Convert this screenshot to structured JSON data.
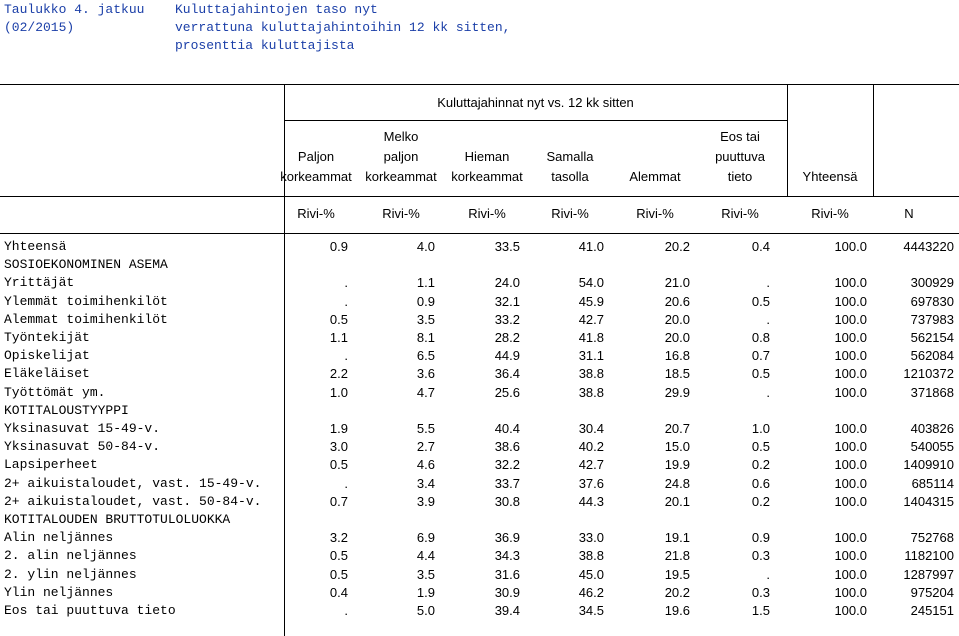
{
  "heading": {
    "table_no": "Taulukko 4. jatkuu",
    "period": "(02/2015)",
    "title_lines": [
      "Kuluttajahintojen taso nyt",
      "verrattuna kuluttajahintoihin 12 kk sitten,",
      "prosenttia kuluttajista"
    ]
  },
  "header": {
    "group": "Kuluttajahinnat nyt vs. 12 kk sitten",
    "columns": [
      [
        "",
        "Paljon",
        "korkeammat"
      ],
      [
        "Melko",
        "paljon",
        "korkeammat"
      ],
      [
        "",
        "Hieman",
        "korkeammat"
      ],
      [
        "",
        "Samalla",
        "tasolla"
      ],
      [
        "",
        "",
        "Alemmat"
      ],
      [
        "Eos tai",
        "puuttuva",
        "tieto"
      ],
      [
        "",
        "",
        "Yhteensä"
      ]
    ],
    "units": [
      "Rivi-%",
      "Rivi-%",
      "Rivi-%",
      "Rivi-%",
      "Rivi-%",
      "Rivi-%",
      "Rivi-%",
      "N"
    ]
  },
  "rows": [
    {
      "label": "Yhteensä",
      "v": [
        "0.9",
        "4.0",
        "33.5",
        "41.0",
        "20.2",
        "0.4",
        "100.0",
        "4443220"
      ]
    },
    {
      "label": "SOSIOEKONOMINEN ASEMA",
      "section": true
    },
    {
      "label": "Yrittäjät",
      "v": [
        ".",
        "1.1",
        "24.0",
        "54.0",
        "21.0",
        ".",
        "100.0",
        "300929"
      ]
    },
    {
      "label": "Ylemmät toimihenkilöt",
      "v": [
        ".",
        "0.9",
        "32.1",
        "45.9",
        "20.6",
        "0.5",
        "100.0",
        "697830"
      ]
    },
    {
      "label": "Alemmat toimihenkilöt",
      "v": [
        "0.5",
        "3.5",
        "33.2",
        "42.7",
        "20.0",
        ".",
        "100.0",
        "737983"
      ]
    },
    {
      "label": "Työntekijät",
      "v": [
        "1.1",
        "8.1",
        "28.2",
        "41.8",
        "20.0",
        "0.8",
        "100.0",
        "562154"
      ]
    },
    {
      "label": "Opiskelijat",
      "v": [
        ".",
        "6.5",
        "44.9",
        "31.1",
        "16.8",
        "0.7",
        "100.0",
        "562084"
      ]
    },
    {
      "label": "Eläkeläiset",
      "v": [
        "2.2",
        "3.6",
        "36.4",
        "38.8",
        "18.5",
        "0.5",
        "100.0",
        "1210372"
      ]
    },
    {
      "label": "Työttömät ym.",
      "v": [
        "1.0",
        "4.7",
        "25.6",
        "38.8",
        "29.9",
        ".",
        "100.0",
        "371868"
      ]
    },
    {
      "label": "KOTITALOUSTYYPPI",
      "section": true
    },
    {
      "label": "Yksinasuvat 15-49-v.",
      "v": [
        "1.9",
        "5.5",
        "40.4",
        "30.4",
        "20.7",
        "1.0",
        "100.0",
        "403826"
      ]
    },
    {
      "label": "Yksinasuvat 50-84-v.",
      "v": [
        "3.0",
        "2.7",
        "38.6",
        "40.2",
        "15.0",
        "0.5",
        "100.0",
        "540055"
      ]
    },
    {
      "label": "Lapsiperheet",
      "v": [
        "0.5",
        "4.6",
        "32.2",
        "42.7",
        "19.9",
        "0.2",
        "100.0",
        "1409910"
      ]
    },
    {
      "label": "2+ aikuistaloudet, vast. 15-49-v.",
      "v": [
        ".",
        "3.4",
        "33.7",
        "37.6",
        "24.8",
        "0.6",
        "100.0",
        "685114"
      ]
    },
    {
      "label": "2+ aikuistaloudet, vast. 50-84-v.",
      "v": [
        "0.7",
        "3.9",
        "30.8",
        "44.3",
        "20.1",
        "0.2",
        "100.0",
        "1404315"
      ]
    },
    {
      "label": "KOTITALOUDEN BRUTTOTULOLUOKKA",
      "section": true
    },
    {
      "label": "Alin neljännes",
      "v": [
        "3.2",
        "6.9",
        "36.9",
        "33.0",
        "19.1",
        "0.9",
        "100.0",
        "752768"
      ]
    },
    {
      "label": "2. alin neljännes",
      "v": [
        "0.5",
        "4.4",
        "34.3",
        "38.8",
        "21.8",
        "0.3",
        "100.0",
        "1182100"
      ]
    },
    {
      "label": "2. ylin neljännes",
      "v": [
        "0.5",
        "3.5",
        "31.6",
        "45.0",
        "19.5",
        ".",
        "100.0",
        "1287997"
      ]
    },
    {
      "label": "Ylin neljännes",
      "v": [
        "0.4",
        "1.9",
        "30.9",
        "46.2",
        "20.2",
        "0.3",
        "100.0",
        "975204"
      ]
    },
    {
      "label": "Eos tai puuttuva tieto",
      "v": [
        ".",
        "5.0",
        "39.4",
        "34.5",
        "19.6",
        "1.5",
        "100.0",
        "245151"
      ]
    }
  ]
}
